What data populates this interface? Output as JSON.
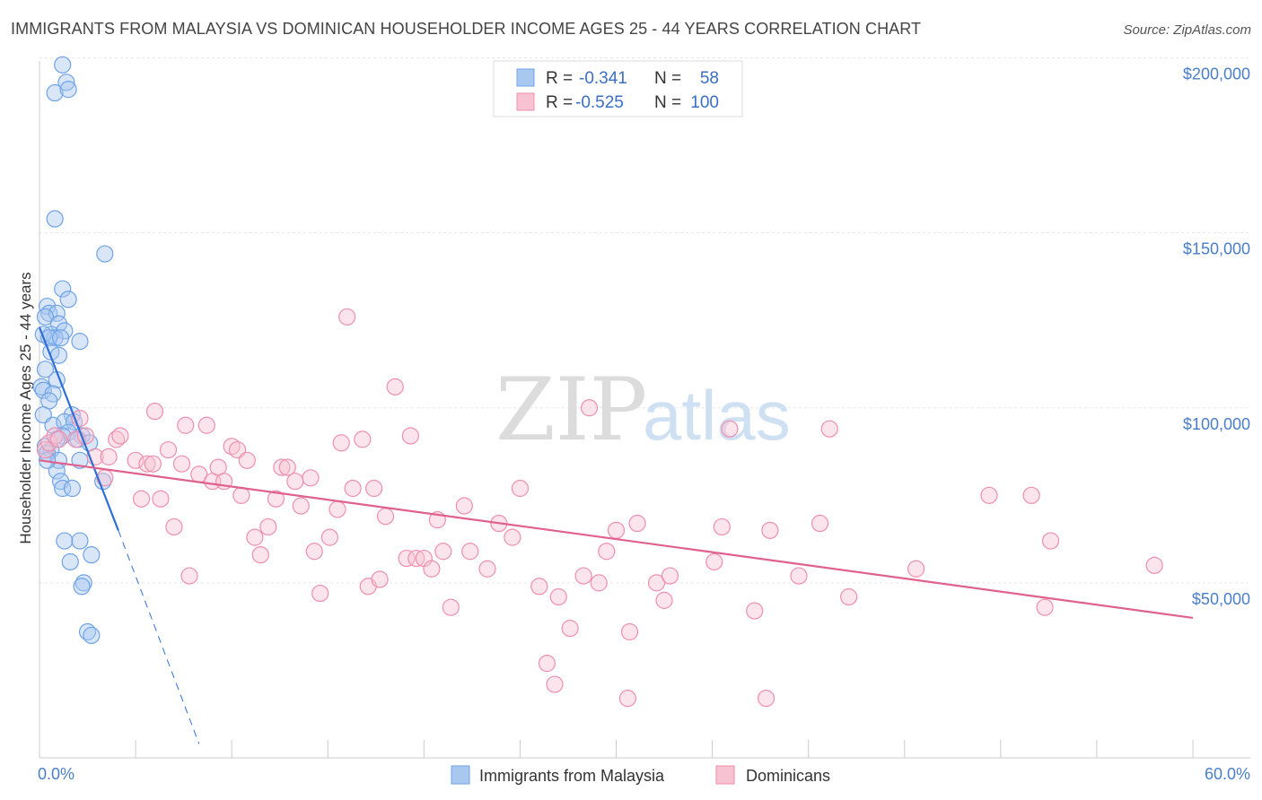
{
  "chart_data": {
    "type": "scatter",
    "title": "IMMIGRANTS FROM MALAYSIA VS DOMINICAN HOUSEHOLDER INCOME AGES 25 - 44 YEARS CORRELATION CHART",
    "source": "Source: ZipAtlas.com",
    "xlabel": "",
    "ylabel": "Householder Income Ages 25 - 44 years",
    "xlim": [
      0,
      60
    ],
    "ylim": [
      0,
      205000
    ],
    "x_tick_labels": {
      "left": "0.0%",
      "right": "60.0%"
    },
    "y_ticks": [
      {
        "value": 200000,
        "label": "$200,000"
      },
      {
        "value": 150000,
        "label": "$150,000"
      },
      {
        "value": 100000,
        "label": "$100,000"
      },
      {
        "value": 50000,
        "label": "$50,000"
      }
    ],
    "grid": true,
    "legend": {
      "entries": [
        {
          "r_label": "R =",
          "r_value": "-0.341",
          "n_label": "N =",
          "n_value": "58"
        },
        {
          "r_label": "R =",
          "r_value": "-0.525",
          "n_label": "N =",
          "n_value": "100"
        }
      ]
    },
    "watermark": {
      "part1": "ZIP",
      "part2": "atlas"
    },
    "series": [
      {
        "name": "Immigrants from Malaysia",
        "color": "#6fa3e8",
        "fill": "#a9c8f0",
        "line_color": "#2f6fd6",
        "trend": {
          "x0": 0,
          "y0": 123000,
          "x1": 4.1,
          "y1": 65000,
          "dash_to_x": 8.3,
          "dash_to_y": 4000
        },
        "points": [
          [
            1.2,
            198000
          ],
          [
            1.4,
            193000
          ],
          [
            0.8,
            190000
          ],
          [
            1.5,
            191000
          ],
          [
            0.8,
            154000
          ],
          [
            3.4,
            144000
          ],
          [
            1.2,
            134000
          ],
          [
            1.5,
            131000
          ],
          [
            0.4,
            129000
          ],
          [
            0.5,
            127000
          ],
          [
            0.9,
            127000
          ],
          [
            0.3,
            126000
          ],
          [
            1.0,
            124000
          ],
          [
            1.3,
            122000
          ],
          [
            0.6,
            121000
          ],
          [
            0.8,
            120000
          ],
          [
            0.2,
            121000
          ],
          [
            0.5,
            120000
          ],
          [
            1.1,
            120000
          ],
          [
            2.1,
            119000
          ],
          [
            0.6,
            116000
          ],
          [
            1.0,
            115000
          ],
          [
            0.3,
            111000
          ],
          [
            0.9,
            108000
          ],
          [
            0.1,
            106000
          ],
          [
            0.2,
            105000
          ],
          [
            0.7,
            104000
          ],
          [
            0.5,
            102000
          ],
          [
            0.2,
            98000
          ],
          [
            1.7,
            98000
          ],
          [
            0.7,
            95000
          ],
          [
            1.3,
            96000
          ],
          [
            1.8,
            96000
          ],
          [
            1.5,
            93000
          ],
          [
            1.2,
            92000
          ],
          [
            2.2,
            92000
          ],
          [
            0.9,
            91000
          ],
          [
            2.0,
            91000
          ],
          [
            2.6,
            90000
          ],
          [
            0.3,
            89000
          ],
          [
            0.6,
            88000
          ],
          [
            0.4,
            87000
          ],
          [
            1.0,
            85000
          ],
          [
            2.1,
            85000
          ],
          [
            0.9,
            82000
          ],
          [
            1.1,
            79000
          ],
          [
            3.3,
            79000
          ],
          [
            1.2,
            77000
          ],
          [
            1.7,
            77000
          ],
          [
            1.3,
            62000
          ],
          [
            2.1,
            62000
          ],
          [
            2.7,
            58000
          ],
          [
            1.6,
            56000
          ],
          [
            2.3,
            50000
          ],
          [
            2.2,
            49000
          ],
          [
            2.5,
            36000
          ],
          [
            2.7,
            35000
          ],
          [
            0.4,
            85000
          ]
        ]
      },
      {
        "name": "Dominicans",
        "color": "#ef8fae",
        "fill": "#f7c3d3",
        "line_color": "#e0608e",
        "trend": {
          "x0": 0,
          "y0": 85000,
          "x1": 60,
          "y1": 40000
        },
        "points": [
          [
            0.3,
            88000
          ],
          [
            0.5,
            90000
          ],
          [
            0.8,
            92000
          ],
          [
            1.0,
            91000
          ],
          [
            1.9,
            91000
          ],
          [
            2.1,
            97000
          ],
          [
            2.4,
            92000
          ],
          [
            2.9,
            86000
          ],
          [
            3.4,
            80000
          ],
          [
            3.6,
            86000
          ],
          [
            4.0,
            91000
          ],
          [
            4.2,
            92000
          ],
          [
            5.0,
            85000
          ],
          [
            5.3,
            74000
          ],
          [
            5.6,
            84000
          ],
          [
            5.9,
            84000
          ],
          [
            6.0,
            99000
          ],
          [
            6.3,
            74000
          ],
          [
            6.7,
            88000
          ],
          [
            7.0,
            66000
          ],
          [
            7.4,
            84000
          ],
          [
            7.6,
            95000
          ],
          [
            7.8,
            52000
          ],
          [
            8.3,
            81000
          ],
          [
            8.7,
            95000
          ],
          [
            9.0,
            79000
          ],
          [
            9.3,
            83000
          ],
          [
            9.6,
            79000
          ],
          [
            10.0,
            89000
          ],
          [
            10.3,
            88000
          ],
          [
            10.5,
            75000
          ],
          [
            10.8,
            85000
          ],
          [
            11.2,
            63000
          ],
          [
            11.5,
            58000
          ],
          [
            11.9,
            66000
          ],
          [
            12.3,
            74000
          ],
          [
            12.6,
            83000
          ],
          [
            12.9,
            83000
          ],
          [
            13.3,
            79000
          ],
          [
            13.6,
            72000
          ],
          [
            14.1,
            80000
          ],
          [
            14.3,
            59000
          ],
          [
            14.6,
            47000
          ],
          [
            15.1,
            63000
          ],
          [
            15.5,
            71000
          ],
          [
            15.7,
            90000
          ],
          [
            16.0,
            126000
          ],
          [
            16.3,
            77000
          ],
          [
            16.8,
            91000
          ],
          [
            17.1,
            49000
          ],
          [
            17.4,
            77000
          ],
          [
            17.7,
            51000
          ],
          [
            18.0,
            69000
          ],
          [
            18.5,
            106000
          ],
          [
            19.1,
            57000
          ],
          [
            19.3,
            92000
          ],
          [
            19.6,
            57000
          ],
          [
            20.0,
            57000
          ],
          [
            20.4,
            54000
          ],
          [
            20.7,
            68000
          ],
          [
            21.0,
            59000
          ],
          [
            21.4,
            43000
          ],
          [
            22.1,
            72000
          ],
          [
            22.4,
            59000
          ],
          [
            23.3,
            54000
          ],
          [
            23.9,
            67000
          ],
          [
            24.6,
            63000
          ],
          [
            25.0,
            77000
          ],
          [
            26.0,
            49000
          ],
          [
            26.4,
            27000
          ],
          [
            26.8,
            21000
          ],
          [
            27.0,
            46000
          ],
          [
            27.6,
            37000
          ],
          [
            28.3,
            52000
          ],
          [
            28.6,
            100000
          ],
          [
            29.1,
            50000
          ],
          [
            29.5,
            59000
          ],
          [
            30.0,
            65000
          ],
          [
            30.6,
            17000
          ],
          [
            30.7,
            36000
          ],
          [
            31.1,
            67000
          ],
          [
            32.1,
            50000
          ],
          [
            32.5,
            45000
          ],
          [
            32.8,
            52000
          ],
          [
            35.1,
            56000
          ],
          [
            35.5,
            66000
          ],
          [
            35.9,
            94000
          ],
          [
            37.2,
            42000
          ],
          [
            38.0,
            65000
          ],
          [
            39.5,
            52000
          ],
          [
            40.6,
            67000
          ],
          [
            41.1,
            94000
          ],
          [
            42.1,
            46000
          ],
          [
            45.6,
            54000
          ],
          [
            49.4,
            75000
          ],
          [
            51.6,
            75000
          ],
          [
            52.3,
            43000
          ],
          [
            52.6,
            62000
          ],
          [
            58.0,
            55000
          ],
          [
            37.8,
            17000
          ]
        ]
      }
    ]
  }
}
